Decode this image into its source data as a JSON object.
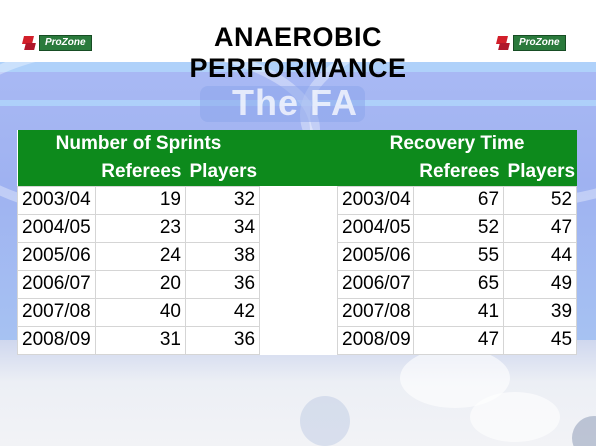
{
  "title": "ANAEROBIC PERFORMANCE",
  "badge": {
    "label": "ProZone",
    "icon": "prozone-logo-icon"
  },
  "watermark": "The FA",
  "sprints": {
    "heading": "Number of Sprints",
    "col_referees": "Referees",
    "col_players": "Players",
    "rows": [
      {
        "season": "2003/04",
        "referees": "19",
        "players": "32"
      },
      {
        "season": "2004/05",
        "referees": "23",
        "players": "34"
      },
      {
        "season": "2005/06",
        "referees": "24",
        "players": "38"
      },
      {
        "season": "2006/07",
        "referees": "20",
        "players": "36"
      },
      {
        "season": "2007/08",
        "referees": "40",
        "players": "42"
      },
      {
        "season": "2008/09",
        "referees": "31",
        "players": "36"
      }
    ]
  },
  "recovery": {
    "heading": "Recovery Time",
    "col_referees": "Referees",
    "col_players": "Players",
    "rows": [
      {
        "season": "2003/04",
        "referees": "67",
        "players": "52"
      },
      {
        "season": "2004/05",
        "referees": "52",
        "players": "47"
      },
      {
        "season": "2005/06",
        "referees": "55",
        "players": "44"
      },
      {
        "season": "2006/07",
        "referees": "65",
        "players": "49"
      },
      {
        "season": "2007/08",
        "referees": "41",
        "players": "39"
      },
      {
        "season": "2008/09",
        "referees": "47",
        "players": "45"
      }
    ]
  },
  "colors": {
    "header_green": "#0d8a1c",
    "title": "#000000",
    "background_blue": "#a9b9f4"
  }
}
